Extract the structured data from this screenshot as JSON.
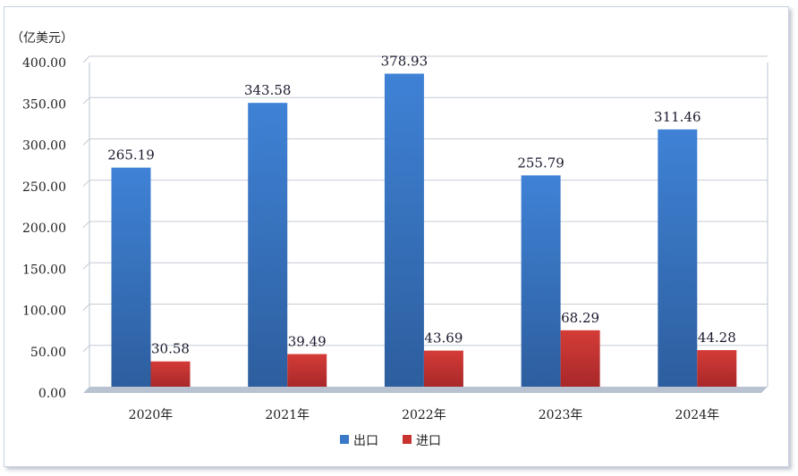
{
  "chart_data": {
    "type": "bar",
    "unit_label": "（亿美元）",
    "categories": [
      "2020年",
      "2021年",
      "2022年",
      "2023年",
      "2024年"
    ],
    "series": [
      {
        "name": "出口",
        "values": [
          265.19,
          343.58,
          378.93,
          255.79,
          311.46
        ],
        "color": "#3a78c8"
      },
      {
        "name": "进口",
        "values": [
          30.58,
          39.49,
          43.69,
          68.29,
          44.28
        ],
        "color": "#c8322f"
      }
    ],
    "y_ticks": [
      "0.00",
      "50.00",
      "100.00",
      "150.00",
      "200.00",
      "250.00",
      "300.00",
      "350.00",
      "400.00"
    ],
    "ylim": [
      0,
      400
    ],
    "grid": true,
    "legend_position": "bottom"
  }
}
